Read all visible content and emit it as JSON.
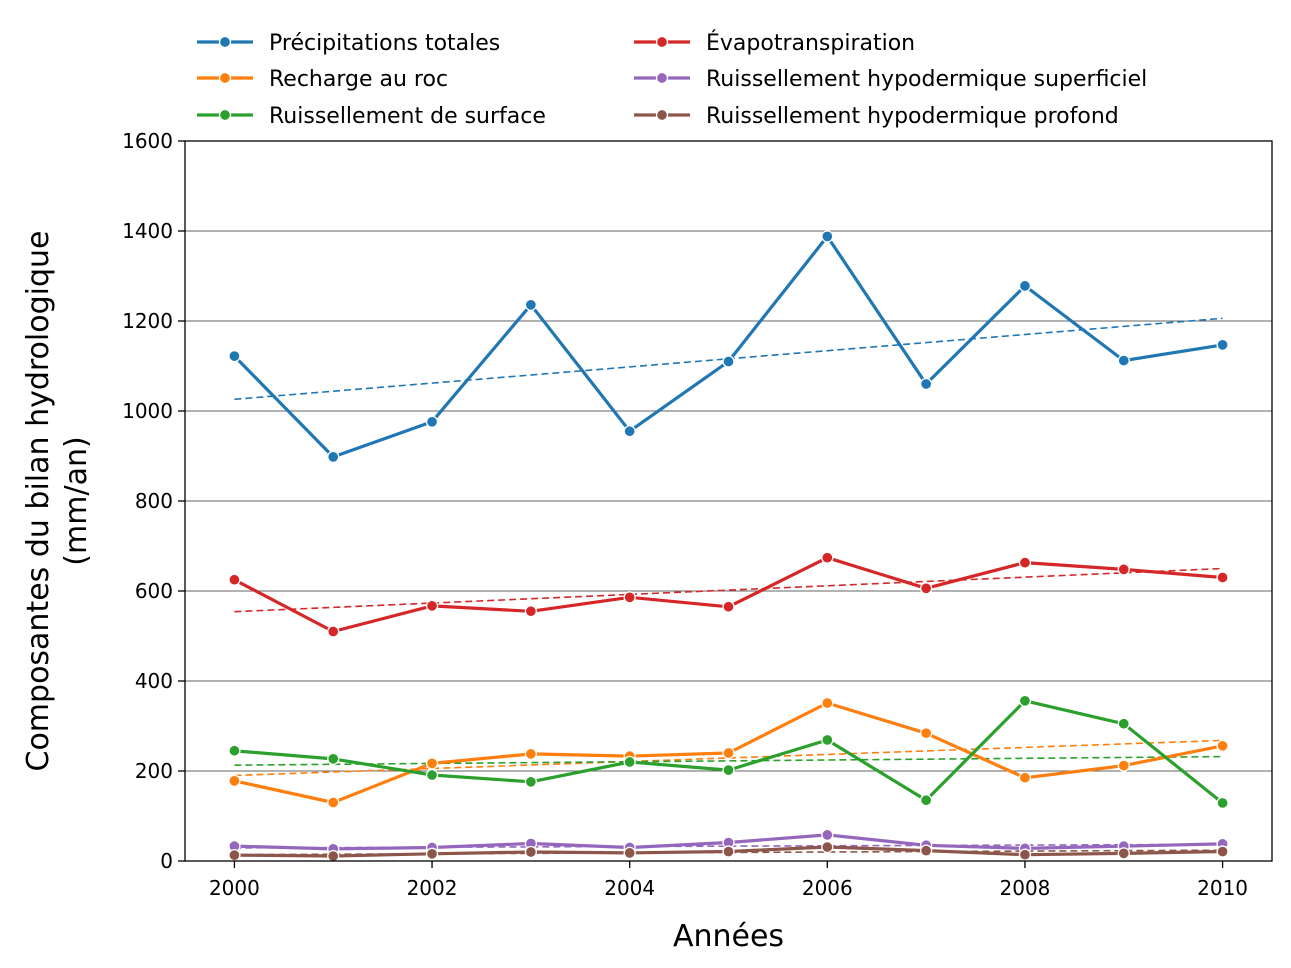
{
  "chart_data": {
    "type": "line",
    "xlabel": "Années",
    "ylabel": [
      "Composantes du bilan hydrologique",
      "(mm/an)"
    ],
    "xlim": [
      1999.5,
      2010.5
    ],
    "ylim": [
      0,
      1600
    ],
    "xticks": [
      2000,
      2002,
      2004,
      2006,
      2008,
      2010
    ],
    "yticks": [
      0,
      200,
      400,
      600,
      800,
      1000,
      1200,
      1400,
      1600
    ],
    "grid": "horizontal",
    "legend_position": "top",
    "x": [
      2000,
      2001,
      2002,
      2003,
      2004,
      2005,
      2006,
      2007,
      2008,
      2009,
      2010
    ],
    "series": [
      {
        "name": "Précipitations totales",
        "color": "#1f77b4",
        "values": [
          1122,
          898,
          976,
          1236,
          955,
          1110,
          1388,
          1060,
          1278,
          1112,
          1147
        ],
        "trend": [
          1026,
          1206
        ]
      },
      {
        "name": "Recharge au roc",
        "color": "#ff7f0e",
        "values": [
          178,
          130,
          217,
          238,
          233,
          240,
          351,
          284,
          185,
          212,
          256
        ],
        "trend": [
          190,
          268
        ]
      },
      {
        "name": "Ruissellement de surface",
        "color": "#2ca02c",
        "values": [
          245,
          227,
          191,
          176,
          220,
          202,
          269,
          135,
          356,
          305,
          129
        ],
        "trend": [
          213,
          232
        ]
      },
      {
        "name": "Évapotranspiration",
        "color": "#d62728",
        "values": [
          625,
          510,
          567,
          555,
          586,
          565,
          674,
          606,
          663,
          648,
          630
        ],
        "trend": [
          554,
          650
        ]
      },
      {
        "name": "Ruissellement hypodermique superficiel",
        "color": "#9467bd",
        "values": [
          33,
          27,
          30,
          39,
          30,
          41,
          58,
          35,
          28,
          33,
          38
        ],
        "trend": [
          29,
          37
        ]
      },
      {
        "name": "Ruissellement hypodermique profond",
        "color": "#8c564b",
        "values": [
          13,
          11,
          16,
          20,
          18,
          21,
          31,
          23,
          14,
          17,
          21
        ],
        "trend": [
          14,
          24
        ]
      }
    ]
  }
}
